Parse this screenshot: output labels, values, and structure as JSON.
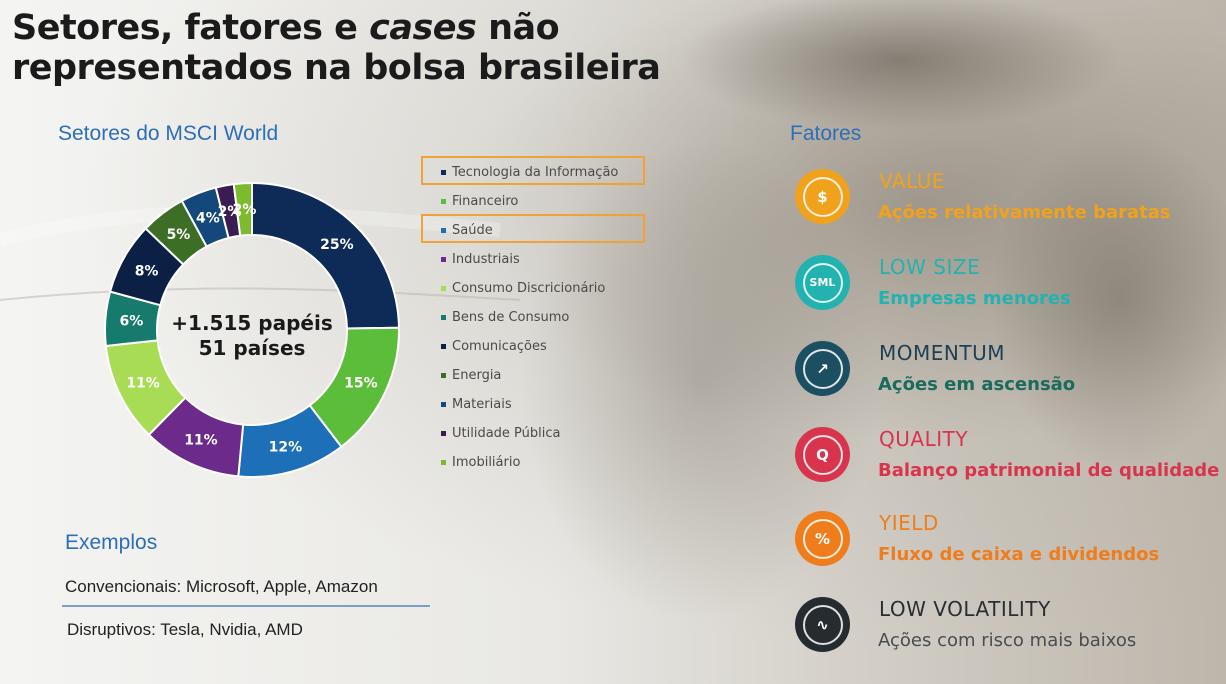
{
  "title": {
    "line1_pre": "Setores, fatores e ",
    "line1_em": "cases",
    "line1_post": " não",
    "line2": "representados na bolsa brasileira"
  },
  "sectors_heading": "Setores do MSCI World",
  "donut_center": {
    "line1": "+1.515 papéis",
    "line2": "51 países"
  },
  "chart_data": {
    "type": "pie",
    "title": "Setores do MSCI World",
    "slices": [
      {
        "label": "Tecnologia da Informação",
        "value": 25,
        "text": "25%",
        "color": "#0e2a57"
      },
      {
        "label": "Financeiro",
        "value": 15,
        "text": "15%",
        "color": "#5bbd3a"
      },
      {
        "label": "Saúde",
        "value": 12,
        "text": "12%",
        "color": "#1d6fb8"
      },
      {
        "label": "Industriais",
        "value": 11,
        "text": "11%",
        "color": "#6c2b8a"
      },
      {
        "label": "Consumo Discricionário",
        "value": 11,
        "text": "11%",
        "color": "#a9dc55"
      },
      {
        "label": "Bens de Consumo",
        "value": 6,
        "text": "6%",
        "color": "#167a6c"
      },
      {
        "label": "Comunicações",
        "value": 8,
        "text": "8%",
        "color": "#0c1f45"
      },
      {
        "label": "Energia",
        "value": 5,
        "text": "5%",
        "color": "#3c6e25"
      },
      {
        "label": "Materiais",
        "value": 4,
        "text": "4%",
        "color": "#15487a"
      },
      {
        "label": "Utilidade Pública",
        "value": 2,
        "text": "2%",
        "color": "#3a1c52"
      },
      {
        "label": "Imobiliário",
        "value": 2,
        "text": "2%",
        "color": "#7cbb2e"
      }
    ],
    "highlighted": [
      "Tecnologia da Informação",
      "Saúde"
    ]
  },
  "examples": {
    "heading": "Exemplos",
    "conventional": "Convencionais: Microsoft, Apple, Amazon",
    "disruptive": "Disruptivos: Tesla, Nvidia, AMD"
  },
  "factors_heading": "Fatores",
  "factors": [
    {
      "name": "VALUE",
      "desc": "Ações relativamente baratas",
      "color": "#f0a21c",
      "icon": "money-icon",
      "glyph": "$"
    },
    {
      "name": "LOW SIZE",
      "desc": "Empresas menores",
      "color": "#22b3b0",
      "icon": "size-sml-icon",
      "glyph": "SML"
    },
    {
      "name": "MOMENTUM",
      "desc": "Ações em ascensão",
      "color": "#1c4f62",
      "icon": "trend-up-icon",
      "glyph": "↗"
    },
    {
      "name": "QUALITY",
      "desc": "Balanço patrimonial de qualidade",
      "color": "#d8344d",
      "icon": "quality-seal-icon",
      "glyph": "Q"
    },
    {
      "name": "YIELD",
      "desc": "Fluxo de caixa e dividendos",
      "color": "#ef7d1b",
      "icon": "percent-icon",
      "glyph": "%"
    },
    {
      "name": "LOW VOLATILITY",
      "desc": "Ações com risco mais baixos",
      "color": "#262b2f",
      "icon": "volatility-icon",
      "glyph": "∿"
    }
  ]
}
